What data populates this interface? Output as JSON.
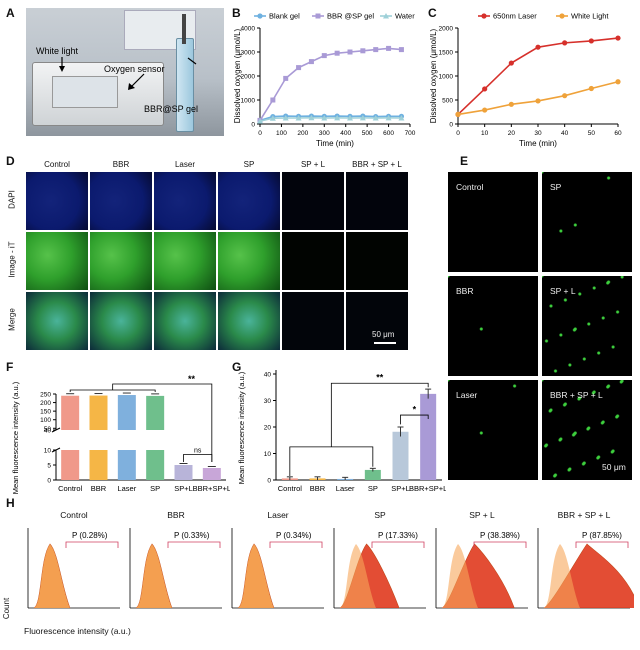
{
  "panels": {
    "A": "A",
    "B": "B",
    "C": "C",
    "D": "D",
    "E": "E",
    "F": "F",
    "G": "G",
    "H": "H"
  },
  "panel_a": {
    "white_light": "White light",
    "oxygen_sensor": "Oxygen sensor",
    "sample": "BBR@SP gel"
  },
  "panel_d": {
    "columns": [
      "Control",
      "BBR",
      "Laser",
      "SP",
      "SP + L",
      "BBR + SP + L"
    ],
    "rows": [
      "DAPI",
      "Image - iT",
      "Merge"
    ],
    "scale": "50 μm",
    "dapi_color": "#0b1a6e",
    "green_color": "#2fa02c"
  },
  "panel_e": {
    "labels": [
      "Control",
      "SP",
      "BBR",
      "SP + L",
      "Laser",
      "BBR + SP + L"
    ],
    "scale": "50 μm"
  },
  "panel_h": {
    "titles": [
      "Control",
      "BBR",
      "Laser",
      "SP",
      "SP + L",
      "BBR + SP + L"
    ],
    "gates": [
      "P (0.28%)",
      "P (0.33%)",
      "P (0.34%)",
      "P (17.33%)",
      "P (38.38%)",
      "P (87.85%)"
    ],
    "ylabel": "Count",
    "xlabel": "Fluorescence intensity (a.u.)"
  },
  "chart_data": [
    {
      "panel": "B",
      "type": "line",
      "xlabel": "Time (min)",
      "ylabel": "Dissolved oxygen (μmol/L)",
      "xlim": [
        0,
        700
      ],
      "ylim": [
        0,
        4000
      ],
      "xticks": [
        0,
        100,
        200,
        300,
        400,
        500,
        600,
        700
      ],
      "yticks": [
        0,
        1000,
        2000,
        3000,
        4000
      ],
      "legend_position": "top",
      "series": [
        {
          "name": "Blank gel",
          "color": "#6fb1e0",
          "marker": "circle",
          "x": [
            0,
            60,
            120,
            180,
            240,
            300,
            360,
            420,
            480,
            540,
            600,
            660
          ],
          "y": [
            150,
            310,
            330,
            320,
            330,
            320,
            330,
            320,
            330,
            310,
            320,
            320
          ]
        },
        {
          "name": "BBR @SP gel",
          "color": "#a99ad6",
          "marker": "square",
          "x": [
            0,
            60,
            120,
            180,
            240,
            300,
            360,
            420,
            480,
            540,
            600,
            660
          ],
          "y": [
            150,
            1000,
            1900,
            2350,
            2600,
            2850,
            2950,
            3000,
            3050,
            3100,
            3150,
            3100
          ]
        },
        {
          "name": "Water",
          "color": "#9ed0d8",
          "marker": "triangle",
          "x": [
            0,
            60,
            120,
            180,
            240,
            300,
            360,
            420,
            480,
            540,
            600,
            660
          ],
          "y": [
            120,
            240,
            250,
            250,
            260,
            250,
            255,
            250,
            255,
            250,
            255,
            250
          ]
        }
      ]
    },
    {
      "panel": "C",
      "type": "line",
      "xlabel": "Time (min)",
      "ylabel": "Dissolved oxygen (μmol/L)",
      "xlim": [
        0,
        60
      ],
      "ylim": [
        0,
        2000
      ],
      "xticks": [
        0,
        10,
        20,
        30,
        40,
        50,
        60
      ],
      "yticks": [
        0,
        500,
        1000,
        1500,
        2000
      ],
      "legend_position": "top",
      "series": [
        {
          "name": "650nm Laser",
          "color": "#d6302b",
          "marker": "circle",
          "x": [
            0,
            10,
            20,
            30,
            40,
            50,
            60
          ],
          "y": [
            200,
            730,
            1270,
            1600,
            1690,
            1730,
            1790
          ]
        },
        {
          "name": "White Light",
          "color": "#efa23a",
          "marker": "circle",
          "x": [
            0,
            10,
            20,
            30,
            40,
            50,
            60
          ],
          "y": [
            200,
            290,
            410,
            480,
            590,
            740,
            880
          ]
        }
      ]
    },
    {
      "panel": "F",
      "type": "bar",
      "ylabel": "Mean fluorescence intensity (a.u.)",
      "categories": [
        "Control",
        "BBR",
        "Laser",
        "SP",
        "SP+L",
        "BBR+SP+L"
      ],
      "values": [
        240,
        241,
        244,
        239,
        5,
        4
      ],
      "colors": [
        "#f0998a",
        "#f5b646",
        "#7fb0dd",
        "#6fbf8c",
        "#b8b4d9",
        "#c8a6d8"
      ],
      "broken_axis": {
        "lower": [
          0,
          10
        ],
        "upper": [
          40,
          250
        ]
      },
      "yticks": [
        0,
        5,
        10,
        40,
        50,
        100,
        150,
        200,
        250
      ],
      "annotations": [
        "**",
        "ns"
      ]
    },
    {
      "panel": "G",
      "type": "bar",
      "ylabel": "Mean fluorescence intensity (a.u.)",
      "categories": [
        "Control",
        "BBR",
        "Laser",
        "SP",
        "SP+L",
        "BBR+SP+L"
      ],
      "values": [
        0.6,
        0.6,
        0.4,
        3.8,
        18.2,
        32.5
      ],
      "colors": [
        "#f0998a",
        "#f5b646",
        "#7fb0dd",
        "#6fbf8c",
        "#b8c8da",
        "#a99ad6"
      ],
      "ylim": [
        0,
        40
      ],
      "yticks": [
        0,
        10,
        20,
        30,
        40
      ],
      "annotations": [
        "**",
        "*"
      ]
    }
  ]
}
